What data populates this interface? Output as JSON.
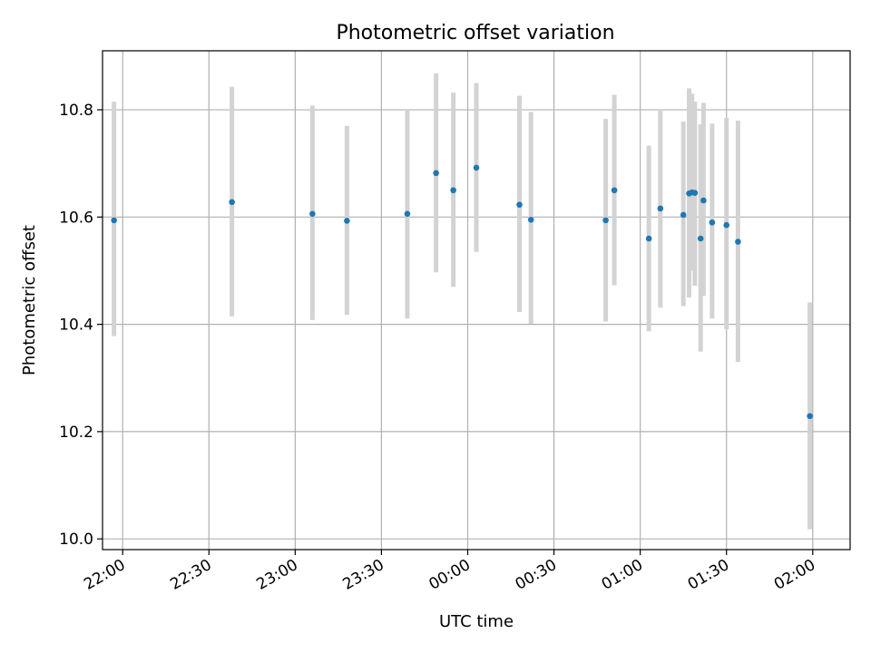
{
  "chart_data": {
    "type": "scatter",
    "title": "Photometric offset variation",
    "xlabel": "UTC time",
    "ylabel": "Photometric offset",
    "x_axis_type": "time",
    "xlim": [
      "21:53",
      "02:13"
    ],
    "ylim": [
      9.98,
      10.91
    ],
    "x_ticks": [
      "22:00",
      "22:30",
      "23:00",
      "23:30",
      "00:00",
      "00:30",
      "01:00",
      "01:30",
      "02:00"
    ],
    "y_ticks": [
      "10.0",
      "10.2",
      "10.4",
      "10.6",
      "10.8"
    ],
    "grid": true,
    "series": [
      {
        "marker_color": "#1f77b4",
        "errorbar_color": "#d3d3d3",
        "points": [
          {
            "x": "21:57",
            "y": 10.594,
            "lo": 10.378,
            "hi": 10.815
          },
          {
            "x": "22:38",
            "y": 10.628,
            "lo": 10.415,
            "hi": 10.843
          },
          {
            "x": "23:06",
            "y": 10.606,
            "lo": 10.408,
            "hi": 10.808
          },
          {
            "x": "23:18",
            "y": 10.593,
            "lo": 10.418,
            "hi": 10.77
          },
          {
            "x": "23:39",
            "y": 10.606,
            "lo": 10.411,
            "hi": 10.8
          },
          {
            "x": "23:49",
            "y": 10.682,
            "lo": 10.497,
            "hi": 10.868
          },
          {
            "x": "23:55",
            "y": 10.65,
            "lo": 10.47,
            "hi": 10.832
          },
          {
            "x": "00:03",
            "y": 10.692,
            "lo": 10.535,
            "hi": 10.85
          },
          {
            "x": "00:18",
            "y": 10.623,
            "lo": 10.423,
            "hi": 10.826
          },
          {
            "x": "00:22",
            "y": 10.595,
            "lo": 10.401,
            "hi": 10.796
          },
          {
            "x": "00:48",
            "y": 10.594,
            "lo": 10.405,
            "hi": 10.783
          },
          {
            "x": "00:51",
            "y": 10.65,
            "lo": 10.473,
            "hi": 10.828
          },
          {
            "x": "01:03",
            "y": 10.56,
            "lo": 10.387,
            "hi": 10.733
          },
          {
            "x": "01:07",
            "y": 10.616,
            "lo": 10.431,
            "hi": 10.8
          },
          {
            "x": "01:15",
            "y": 10.604,
            "lo": 10.434,
            "hi": 10.778
          },
          {
            "x": "01:17",
            "y": 10.644,
            "lo": 10.45,
            "hi": 10.84
          },
          {
            "x": "01:18",
            "y": 10.646,
            "lo": 10.5,
            "hi": 10.83
          },
          {
            "x": "01:19",
            "y": 10.645,
            "lo": 10.472,
            "hi": 10.815
          },
          {
            "x": "01:21",
            "y": 10.56,
            "lo": 10.349,
            "hi": 10.773
          },
          {
            "x": "01:22",
            "y": 10.631,
            "lo": 10.453,
            "hi": 10.813
          },
          {
            "x": "01:25",
            "y": 10.59,
            "lo": 10.411,
            "hi": 10.774
          },
          {
            "x": "01:30",
            "y": 10.585,
            "lo": 10.391,
            "hi": 10.785
          },
          {
            "x": "01:34",
            "y": 10.554,
            "lo": 10.33,
            "hi": 10.78
          },
          {
            "x": "01:59",
            "y": 10.229,
            "lo": 10.018,
            "hi": 10.441
          }
        ]
      }
    ]
  }
}
